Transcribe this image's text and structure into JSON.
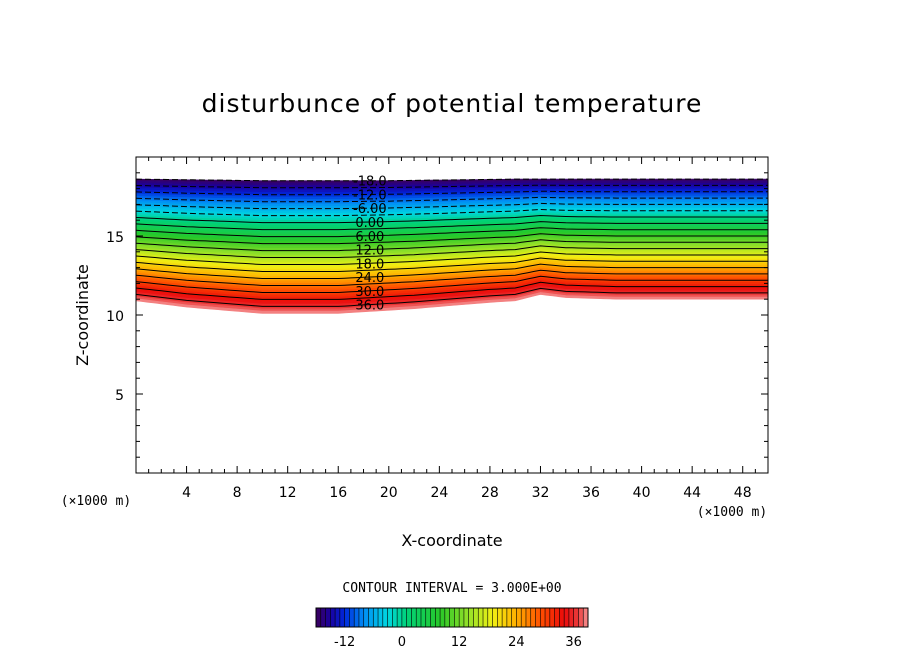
{
  "chart_data": {
    "type": "contour",
    "title": "disturbunce of potential temperature",
    "xlabel": "X-coordinate",
    "ylabel": "Z-coordinate",
    "x_unit_label_left": "(×1000 m)",
    "x_unit_label_right": "(×1000 m)",
    "xlim": [
      0,
      50
    ],
    "ylim": [
      0,
      20
    ],
    "x_ticks": [
      4,
      8,
      12,
      16,
      20,
      24,
      28,
      32,
      36,
      40,
      44,
      48
    ],
    "x_tick_labels": [
      "4",
      "8",
      "12",
      "16",
      "20",
      "24",
      "28",
      "32",
      "36",
      "40",
      "44",
      "48"
    ],
    "y_ticks": [
      5,
      10,
      15
    ],
    "y_tick_labels": [
      "5",
      "10",
      "15"
    ],
    "contour_interval_text": "CONTOUR INTERVAL = 3.000E+00",
    "contour_interval": 3,
    "field_range": [
      -18,
      39
    ],
    "contour_labels": [
      {
        "text": "-18.0",
        "value": -18
      },
      {
        "text": "-12.0",
        "value": -12
      },
      {
        "text": "-6.00",
        "value": -6
      },
      {
        "text": "0.00",
        "value": 0
      },
      {
        "text": "6.00",
        "value": 6
      },
      {
        "text": "12.0",
        "value": 12
      },
      {
        "text": "18.0",
        "value": 18
      },
      {
        "text": "24.0",
        "value": 24
      },
      {
        "text": "30.0",
        "value": 30
      },
      {
        "text": "36.0",
        "value": 36
      }
    ],
    "label_x": 18.5,
    "top_boundary": [
      [
        0,
        18.6
      ],
      [
        10,
        18.5
      ],
      [
        20,
        18.5
      ],
      [
        30,
        18.6
      ],
      [
        40,
        18.6
      ],
      [
        50,
        18.6
      ]
    ],
    "bottom_boundary": [
      [
        0,
        10.9
      ],
      [
        4,
        10.5
      ],
      [
        10,
        10.1
      ],
      [
        16,
        10.1
      ],
      [
        22,
        10.4
      ],
      [
        28,
        10.8
      ],
      [
        30,
        10.9
      ],
      [
        32,
        11.3
      ],
      [
        34,
        11.1
      ],
      [
        38,
        11.0
      ],
      [
        44,
        11.0
      ],
      [
        50,
        11.0
      ]
    ],
    "colorbar": {
      "ticks": [
        -12,
        0,
        12,
        24,
        36
      ],
      "tick_labels": [
        "-12",
        "0",
        "12",
        "24",
        "36"
      ],
      "range": [
        -18,
        39
      ]
    },
    "grid": false,
    "negative_contours": "dashed",
    "colormap": "rainbow"
  }
}
